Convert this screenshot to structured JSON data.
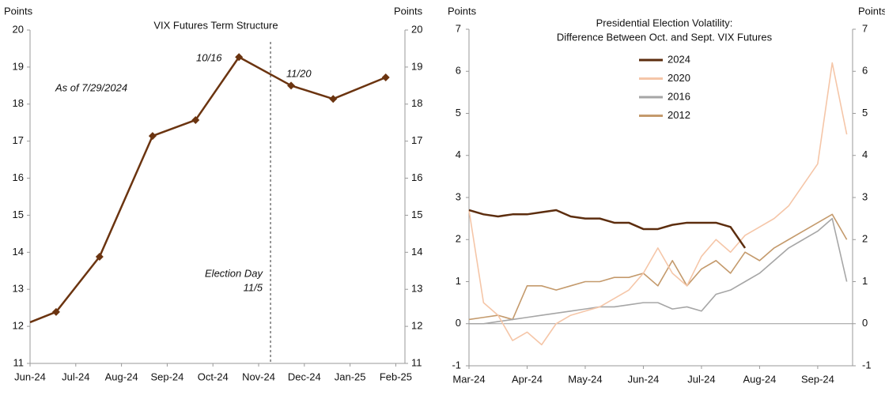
{
  "chart_data": [
    {
      "type": "line",
      "title": "VIX Futures Term Structure",
      "y_label": "Points",
      "y2_label": "Points",
      "x": [
        0,
        0.57,
        1.52,
        2.68,
        3.62,
        4.57,
        5.71,
        6.63,
        7.78
      ],
      "series": [
        {
          "color": "#6b3410",
          "marker": "diamond",
          "values": [
            12.11,
            12.39,
            13.88,
            17.14,
            17.57,
            19.27,
            18.5,
            18.14,
            18.72
          ]
        }
      ],
      "xlim": [
        0,
        8.2
      ],
      "xticks": [
        {
          "value": 0,
          "label": "Jun-24"
        },
        {
          "value": 1,
          "label": "Jul-24"
        },
        {
          "value": 2,
          "label": "Aug-24"
        },
        {
          "value": 3,
          "label": "Sep-24"
        },
        {
          "value": 4,
          "label": "Oct-24"
        },
        {
          "value": 5,
          "label": "Nov-24"
        },
        {
          "value": 6,
          "label": "Dec-24"
        },
        {
          "value": 7,
          "label": "Jan-25"
        },
        {
          "value": 8,
          "label": "Feb-25"
        }
      ],
      "ylim": [
        11,
        20
      ],
      "yticks": [
        11,
        12,
        13,
        14,
        15,
        16,
        17,
        18,
        19,
        20
      ],
      "y2lim": [
        11,
        20
      ],
      "y2ticks": [
        11,
        12,
        13,
        14,
        15,
        16,
        17,
        18,
        19,
        20
      ],
      "vlines": [
        5.26
      ],
      "annotations": [
        "As of 7/29/2024",
        "10/16",
        "11/20",
        "Election Day",
        "11/5"
      ]
    },
    {
      "type": "line",
      "title": [
        "Presidential Election Volatility:",
        "Difference Between Oct. and Sept. VIX Futures"
      ],
      "y_label": "Points",
      "y2_label": "Points",
      "x": [
        0,
        0.25,
        0.5,
        0.75,
        1,
        1.25,
        1.5,
        1.75,
        2,
        2.25,
        2.5,
        2.75,
        3,
        3.25,
        3.5,
        3.75,
        4,
        4.25,
        4.5,
        4.75,
        5,
        5.25,
        5.5,
        5.75,
        6,
        6.25,
        6.5
      ],
      "series": [
        {
          "name": "2024",
          "color": "#5c2d0e",
          "width": 2.5,
          "values": [
            2.7,
            2.6,
            2.55,
            2.6,
            2.6,
            2.65,
            2.7,
            2.55,
            2.5,
            2.5,
            2.4,
            2.4,
            2.25,
            2.25,
            2.35,
            2.4,
            2.4,
            2.4,
            2.3,
            1.8,
            null,
            null,
            null,
            null,
            null,
            null,
            null
          ]
        },
        {
          "name": "2020",
          "color": "#f5c6a8",
          "width": 1.6,
          "values": [
            2.7,
            0.5,
            0.2,
            -0.4,
            -0.2,
            -0.5,
            0.0,
            0.2,
            0.3,
            0.4,
            0.6,
            0.8,
            1.2,
            1.8,
            1.2,
            0.9,
            1.6,
            2.0,
            1.7,
            2.1,
            2.3,
            2.5,
            2.8,
            3.3,
            3.8,
            6.2,
            4.5
          ]
        },
        {
          "name": "2016",
          "color": "#a6a6a6",
          "width": 1.6,
          "values": [
            0,
            0,
            0.05,
            0.1,
            0.15,
            0.2,
            0.25,
            0.3,
            0.35,
            0.4,
            0.4,
            0.45,
            0.5,
            0.5,
            0.35,
            0.4,
            0.3,
            0.7,
            0.8,
            1.0,
            1.2,
            1.5,
            1.8,
            2.0,
            2.2,
            2.5,
            1.0
          ]
        },
        {
          "name": "2012",
          "color": "#c49a6c",
          "width": 1.6,
          "values": [
            0.1,
            0.15,
            0.2,
            0.1,
            0.9,
            0.9,
            0.8,
            0.9,
            1.0,
            1.0,
            1.1,
            1.1,
            1.2,
            0.9,
            1.5,
            0.9,
            1.3,
            1.5,
            1.2,
            1.7,
            1.5,
            1.8,
            2.0,
            2.2,
            2.4,
            2.6,
            2.0
          ]
        }
      ],
      "xlim": [
        0,
        6.6
      ],
      "xticks": [
        {
          "value": 0,
          "label": "Mar-24"
        },
        {
          "value": 1,
          "label": "Apr-24"
        },
        {
          "value": 2,
          "label": "May-24"
        },
        {
          "value": 3,
          "label": "Jun-24"
        },
        {
          "value": 4,
          "label": "Jul-24"
        },
        {
          "value": 5,
          "label": "Aug-24"
        },
        {
          "value": 6,
          "label": "Sep-24"
        }
      ],
      "ylim": [
        -1,
        7
      ],
      "yticks": [
        -1,
        0,
        1,
        2,
        3,
        4,
        5,
        6,
        7
      ],
      "y2lim": [
        -1,
        7
      ],
      "y2ticks": [
        -1,
        0,
        1,
        2,
        3,
        4,
        5,
        6,
        7
      ],
      "legend": "top"
    }
  ]
}
